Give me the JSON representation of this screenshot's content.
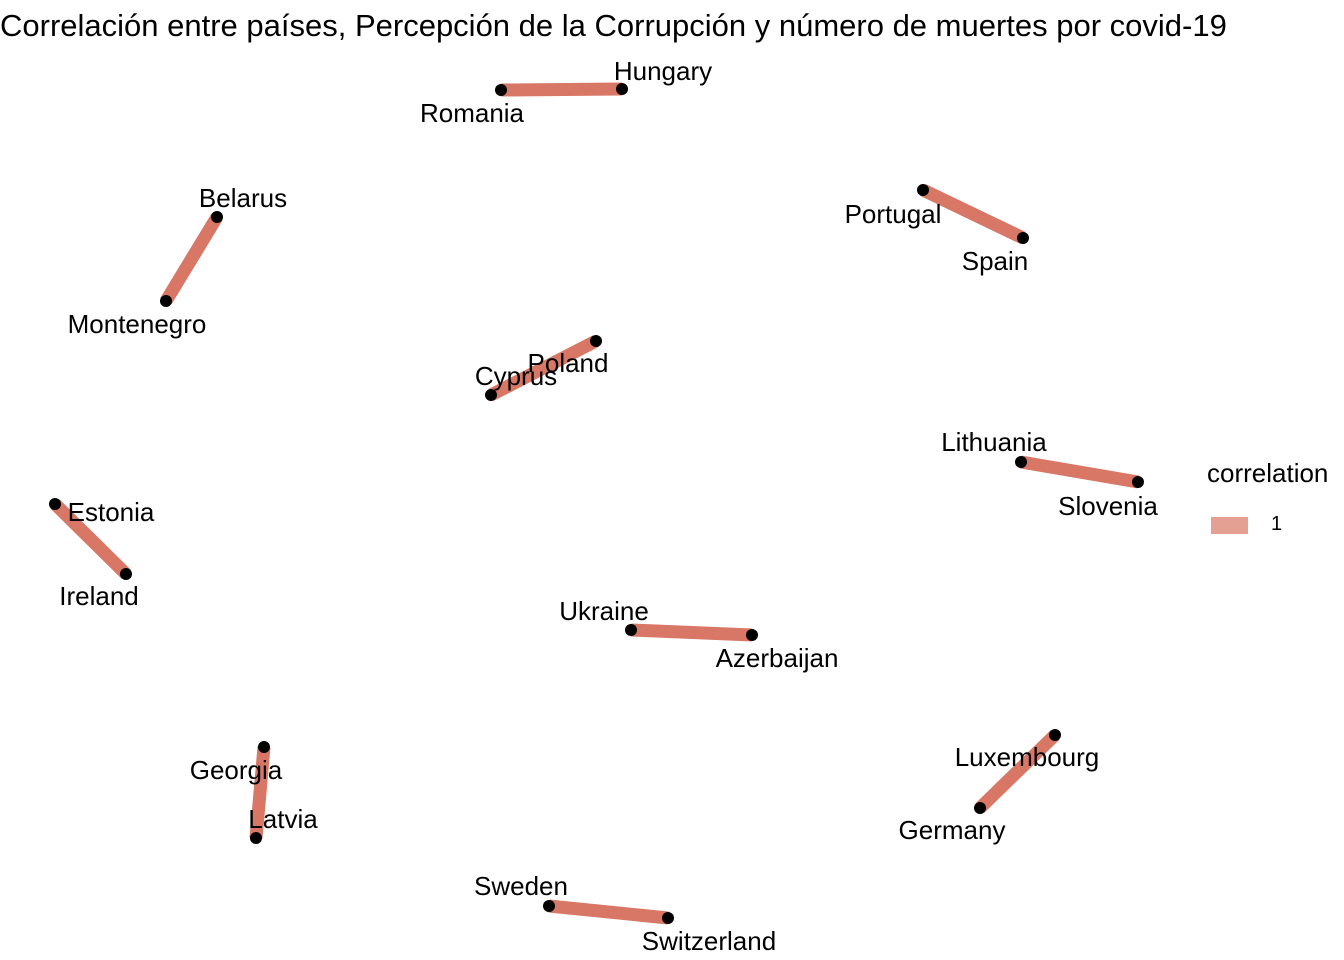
{
  "title": "Correlación entre países, Percepción de la Corrupción y número de muertes por covid-19",
  "legend": {
    "title": "correlation",
    "entries": [
      {
        "label": "1",
        "color": "#e4a092"
      }
    ]
  },
  "colors": {
    "edge": "#d87766",
    "node": "#000000",
    "text": "#000000"
  },
  "nodes": [
    {
      "id": "Romania",
      "label": "Romania"
    },
    {
      "id": "Hungary",
      "label": "Hungary"
    },
    {
      "id": "Belarus",
      "label": "Belarus"
    },
    {
      "id": "Montenegro",
      "label": "Montenegro"
    },
    {
      "id": "Portugal",
      "label": "Portugal"
    },
    {
      "id": "Spain",
      "label": "Spain"
    },
    {
      "id": "Cyprus",
      "label": "Cyprus"
    },
    {
      "id": "Poland",
      "label": "Poland"
    },
    {
      "id": "Lithuania",
      "label": "Lithuania"
    },
    {
      "id": "Slovenia",
      "label": "Slovenia"
    },
    {
      "id": "Estonia",
      "label": "Estonia"
    },
    {
      "id": "Ireland",
      "label": "Ireland"
    },
    {
      "id": "Ukraine",
      "label": "Ukraine"
    },
    {
      "id": "Azerbaijan",
      "label": "Azerbaijan"
    },
    {
      "id": "Georgia",
      "label": "Georgia"
    },
    {
      "id": "Latvia",
      "label": "Latvia"
    },
    {
      "id": "Luxembourg",
      "label": "Luxembourg"
    },
    {
      "id": "Germany",
      "label": "Germany"
    },
    {
      "id": "Sweden",
      "label": "Sweden"
    },
    {
      "id": "Switzerland",
      "label": "Switzerland"
    }
  ],
  "edges": [
    {
      "from": "Romania",
      "to": "Hungary",
      "correlation": 1
    },
    {
      "from": "Belarus",
      "to": "Montenegro",
      "correlation": 1
    },
    {
      "from": "Portugal",
      "to": "Spain",
      "correlation": 1
    },
    {
      "from": "Cyprus",
      "to": "Poland",
      "correlation": 1
    },
    {
      "from": "Lithuania",
      "to": "Slovenia",
      "correlation": 1
    },
    {
      "from": "Estonia",
      "to": "Ireland",
      "correlation": 1
    },
    {
      "from": "Ukraine",
      "to": "Azerbaijan",
      "correlation": 1
    },
    {
      "from": "Georgia",
      "to": "Latvia",
      "correlation": 1
    },
    {
      "from": "Luxembourg",
      "to": "Germany",
      "correlation": 1
    },
    {
      "from": "Sweden",
      "to": "Switzerland",
      "correlation": 1
    }
  ]
}
